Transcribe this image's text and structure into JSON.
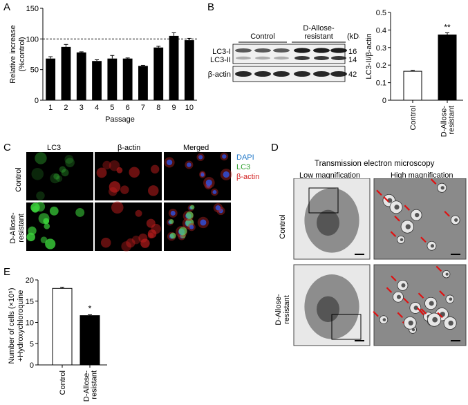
{
  "panel_a": {
    "label": "A",
    "chart_data": {
      "type": "bar",
      "categories": [
        "1",
        "2",
        "3",
        "4",
        "5",
        "6",
        "7",
        "8",
        "9",
        "10"
      ],
      "values": [
        68,
        87,
        78,
        64,
        68,
        68,
        56,
        86,
        105,
        98
      ],
      "errors": [
        3,
        4,
        1,
        2,
        5,
        1,
        1,
        2,
        5,
        3
      ],
      "xlabel": "Passage",
      "ylabel_line1": "Relative increase",
      "ylabel_line2": "(%control)",
      "ylim": [
        0,
        150
      ],
      "yticks": [
        0,
        50,
        100,
        150
      ],
      "reference_line": 100,
      "bar_color": "#000000"
    }
  },
  "panel_b": {
    "label": "B",
    "blot": {
      "group_control": "Control",
      "group_resistant_line1": "D-Allose-",
      "group_resistant_line2": "resistant",
      "kda_header": "(kDa)",
      "row_lc3i": "LC3-I",
      "row_lc3ii": "LC3-II",
      "row_actin": "β-actin",
      "kda_lc3i": "16",
      "kda_lc3ii": "14",
      "kda_actin": "42"
    },
    "chart_data": {
      "type": "bar",
      "categories": [
        "Control",
        "D-Allose-resistant"
      ],
      "tick_labels": [
        [
          "Control"
        ],
        [
          "D-Allose-",
          "resistant"
        ]
      ],
      "values": [
        0.165,
        0.372
      ],
      "errors": [
        0.005,
        0.012
      ],
      "fills": [
        "#ffffff",
        "#000000"
      ],
      "ylabel": "LC3-II/β-actin",
      "ylim": [
        0,
        0.5
      ],
      "yticks": [
        "0",
        "0.1",
        "0.2",
        "0.3",
        "0.4",
        "0.5"
      ],
      "significance": "**"
    }
  },
  "panel_c": {
    "label": "C",
    "columns": [
      "LC3",
      "β-actin",
      "Merged"
    ],
    "rows": [
      [
        "Control"
      ],
      [
        "D-Allose-",
        "resistant"
      ]
    ],
    "legend": [
      {
        "text": "DAPI",
        "color": "#1f77c8"
      },
      {
        "text": "LC3",
        "color": "#2a9d2a"
      },
      {
        "text": "β-actin",
        "color": "#d21f1f"
      }
    ]
  },
  "panel_d": {
    "label": "D",
    "title": "Transmission electron microscopy",
    "columns": [
      "Low magnification",
      "High magnification"
    ],
    "rows": [
      [
        "Control"
      ],
      [
        "D-Allose-",
        "resistant"
      ]
    ]
  },
  "panel_e": {
    "label": "E",
    "chart_data": {
      "type": "bar",
      "categories": [
        "Control",
        "D-Allose-resistant"
      ],
      "tick_labels": [
        [
          "Control"
        ],
        [
          "D-Allose-",
          "resistant"
        ]
      ],
      "values": [
        18.0,
        11.6
      ],
      "errors": [
        0.3,
        0.2
      ],
      "fills": [
        "#ffffff",
        "#000000"
      ],
      "ylabel_line1": "Number of cells (×10⁵)",
      "ylabel_line2": "+Hydroxychloroquine",
      "ylim": [
        0,
        20
      ],
      "yticks": [
        "0",
        "5",
        "10",
        "15",
        "20"
      ],
      "significance": "*"
    }
  }
}
